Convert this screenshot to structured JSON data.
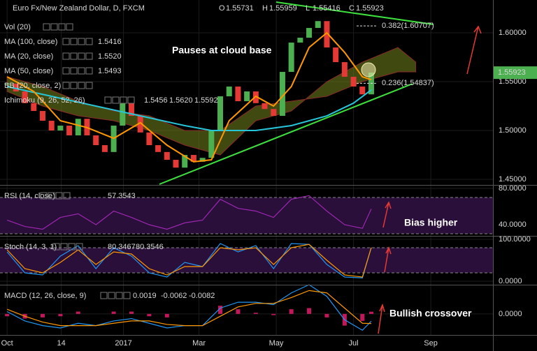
{
  "header": {
    "title": "Euro Fx/New Zealand Dollar, D, FXCM",
    "ohlc": [
      {
        "label": "O",
        "value": 1.55731
      },
      {
        "label": "H",
        "value": 1.55959
      },
      {
        "label": "L",
        "value": 1.55416
      },
      {
        "label": "C",
        "value": 1.55923
      }
    ]
  },
  "chart_data": [
    {
      "type": "candlestick",
      "indicators": [
        {
          "label": "Vol (20)"
        },
        {
          "label": "MA (100, close)",
          "value": "1.5416",
          "color": "#26c6da"
        },
        {
          "label": "MA (20, close)",
          "value": "1.5520",
          "color": "#ff9800"
        },
        {
          "label": "MA (50, close)",
          "value": "1.5493",
          "color": "#4dd0e1"
        },
        {
          "label": "BB (20, close, 2)"
        },
        {
          "label": "Ichimoku (9, 26, 52, 26)",
          "values": [
            "1.5456",
            "1.5620",
            "1.5592"
          ],
          "colors": [
            "#2196f3",
            "#e53935",
            "#4caf50"
          ]
        }
      ],
      "x": [
        0,
        1,
        2,
        3,
        4,
        5,
        6,
        7,
        8,
        9,
        10,
        11,
        12,
        13,
        14,
        15,
        16,
        17,
        18,
        19,
        20,
        21,
        22,
        23,
        24,
        25,
        26,
        27,
        28,
        29,
        30,
        31,
        32,
        33,
        34,
        35,
        36,
        37,
        38,
        39,
        40,
        41
      ],
      "values": [
        1.548,
        1.54,
        1.528,
        1.52,
        1.51,
        1.5,
        1.505,
        1.495,
        1.512,
        1.495,
        1.485,
        1.478,
        1.505,
        1.528,
        1.515,
        1.498,
        1.485,
        1.478,
        1.47,
        1.462,
        1.475,
        1.468,
        1.472,
        1.5,
        1.535,
        1.545,
        1.53,
        1.54,
        1.528,
        1.522,
        1.515,
        1.56,
        1.59,
        1.595,
        1.605,
        1.612,
        1.585,
        1.57,
        1.555,
        1.545,
        1.537,
        1.55923
      ],
      "up_color": "#4caf50",
      "down_color": "#e53935",
      "series": [
        {
          "color": "#26c6da",
          "x": [
            0,
            5,
            10,
            15,
            20,
            23,
            28,
            32,
            36,
            39,
            41
          ],
          "values": [
            1.545,
            1.535,
            1.525,
            1.515,
            1.505,
            1.5,
            1.5,
            1.505,
            1.515,
            1.528,
            1.5416
          ]
        },
        {
          "color": "#ff9800",
          "x": [
            0,
            3,
            6,
            9,
            12,
            15,
            18,
            21,
            23,
            25,
            28,
            30,
            32,
            34,
            36,
            38,
            40,
            41
          ],
          "values": [
            1.555,
            1.54,
            1.51,
            1.503,
            1.492,
            1.508,
            1.485,
            1.468,
            1.47,
            1.51,
            1.535,
            1.525,
            1.545,
            1.585,
            1.6,
            1.58,
            1.555,
            1.552
          ]
        }
      ],
      "cloud": {
        "x": [
          0,
          4,
          8,
          12,
          16,
          20,
          24,
          28,
          32,
          36,
          40,
          44,
          46
        ],
        "span_a": [
          1.54,
          1.525,
          1.515,
          1.51,
          1.5,
          1.485,
          1.475,
          1.51,
          1.52,
          1.55,
          1.57,
          1.585,
          1.57
        ],
        "span_b": [
          1.555,
          1.545,
          1.53,
          1.52,
          1.515,
          1.5,
          1.5,
          1.525,
          1.53,
          1.535,
          1.55,
          1.56,
          1.56
        ],
        "color": "#6b7a1a",
        "edge_color": "#8b2a2a"
      },
      "fib_levels": [
        {
          "value": 1.60707,
          "label": "0.382(1.60707)"
        },
        {
          "value": 1.54837,
          "label": "0.236(1.54837)"
        }
      ],
      "last_price": 1.55923,
      "annotations": [
        "Pauses at cloud base"
      ],
      "xlim": [
        -0.8,
        54.7
      ],
      "ylim": [
        1.4443,
        1.6336
      ],
      "yticks": [
        {
          "value": 1.45,
          "label": "1.45000"
        },
        {
          "value": 1.5,
          "label": "1.50000"
        },
        {
          "value": 1.55,
          "label": "1.55000"
        },
        {
          "value": 1.6,
          "label": "1.60000"
        }
      ],
      "xticks": [
        {
          "value": 0,
          "label": "Oct"
        },
        {
          "value": 6.1,
          "label": "14"
        },
        {
          "value": 13.1,
          "label": "2017"
        },
        {
          "value": 21.6,
          "label": "Mar"
        },
        {
          "value": 30.3,
          "label": "May"
        },
        {
          "value": 39,
          "label": "Jul"
        },
        {
          "value": 47.7,
          "label": "Sep"
        }
      ]
    },
    {
      "type": "line",
      "title": "RSI (14, close)",
      "levels": [
        30,
        70
      ],
      "band_color": "#2a0f3a",
      "series": [
        {
          "color": "#9c27b0",
          "x": [
            0,
            2,
            4,
            6,
            8,
            10,
            12,
            14,
            16,
            18,
            20,
            22,
            24,
            26,
            28,
            30,
            32,
            34,
            36,
            38,
            40,
            41
          ],
          "values": [
            45,
            38,
            35,
            48,
            52,
            40,
            55,
            48,
            40,
            35,
            42,
            45,
            68,
            58,
            55,
            48,
            68,
            72,
            55,
            40,
            36,
            57.3543
          ]
        }
      ],
      "xlim": [
        -0.8,
        54.7
      ],
      "ylim": [
        27.7,
        83.8
      ],
      "yticks": [
        {
          "value": 40,
          "label": "40.0000"
        },
        {
          "value": 80,
          "label": "80.0000"
        }
      ],
      "annotations": [
        "Bias higher"
      ]
    },
    {
      "type": "line",
      "title": "Stoch (14, 3, 1)",
      "levels": [
        20,
        80
      ],
      "band_color": "#2a0f3a",
      "series": [
        {
          "color": "#2196f3",
          "x": [
            0,
            2,
            4,
            6,
            8,
            10,
            12,
            14,
            16,
            18,
            20,
            22,
            24,
            26,
            28,
            30,
            32,
            34,
            36,
            38,
            40,
            41
          ],
          "values": [
            70,
            20,
            15,
            60,
            85,
            30,
            80,
            60,
            20,
            10,
            45,
            35,
            90,
            70,
            85,
            30,
            90,
            88,
            40,
            10,
            8,
            80.3467
          ]
        },
        {
          "color": "#ff9800",
          "x": [
            0,
            2,
            4,
            6,
            8,
            10,
            12,
            14,
            16,
            18,
            20,
            22,
            24,
            26,
            28,
            30,
            32,
            34,
            36,
            38,
            40,
            41
          ],
          "values": [
            75,
            30,
            20,
            45,
            75,
            40,
            70,
            65,
            30,
            15,
            35,
            35,
            80,
            75,
            80,
            40,
            80,
            88,
            50,
            15,
            10,
            80.3546
          ]
        }
      ],
      "xlim": [
        -0.8,
        54.7
      ],
      "ylim": [
        -8.3,
        108.3
      ],
      "yticks": [
        {
          "value": 0,
          "label": "0.0000"
        },
        {
          "value": 100,
          "label": "100.0000"
        }
      ]
    },
    {
      "type": "line",
      "title": "MACD (12, 26, close, 9)",
      "series": [
        {
          "color": "#c2185b",
          "style": "bar",
          "x": [
            0,
            2,
            4,
            6,
            8,
            10,
            12,
            14,
            16,
            18,
            20,
            22,
            24,
            26,
            28,
            30,
            32,
            34,
            36,
            38,
            40,
            41
          ],
          "values": [
            -0.002,
            -0.004,
            -0.003,
            -0.002,
            0.002,
            0,
            0.002,
            0.002,
            -0.002,
            -0.003,
            0,
            0,
            0.007,
            0.004,
            0.001,
            -0.001,
            0.004,
            0.005,
            -0.003,
            -0.01,
            -0.006,
            0.0019
          ]
        },
        {
          "color": "#2196f3",
          "x": [
            0,
            2,
            4,
            6,
            8,
            10,
            12,
            14,
            16,
            18,
            20,
            22,
            24,
            26,
            28,
            30,
            32,
            34,
            36,
            38,
            40,
            41
          ],
          "values": [
            0.002,
            -0.006,
            -0.01,
            -0.012,
            -0.008,
            -0.01,
            -0.006,
            -0.004,
            -0.008,
            -0.012,
            -0.01,
            -0.01,
            0.005,
            0.01,
            0.01,
            0.008,
            0.018,
            0.025,
            0.015,
            -0.005,
            -0.014,
            -0.0062
          ]
        },
        {
          "color": "#ff9800",
          "x": [
            0,
            2,
            4,
            6,
            8,
            10,
            12,
            14,
            16,
            18,
            20,
            22,
            24,
            26,
            28,
            30,
            32,
            34,
            36,
            38,
            40,
            41
          ],
          "values": [
            0.004,
            -0.002,
            -0.007,
            -0.01,
            -0.01,
            -0.01,
            -0.008,
            -0.006,
            -0.006,
            -0.009,
            -0.01,
            -0.01,
            -0.002,
            0.006,
            0.009,
            0.009,
            0.014,
            0.02,
            0.018,
            0.005,
            -0.008,
            -0.0082
          ]
        }
      ],
      "xlim": [
        -0.8,
        54.7
      ],
      "ylim": [
        -0.018,
        0.025
      ],
      "yticks": [
        {
          "value": 0,
          "label": "0.0000"
        }
      ],
      "annotations": [
        "Bullish crossover"
      ]
    }
  ]
}
